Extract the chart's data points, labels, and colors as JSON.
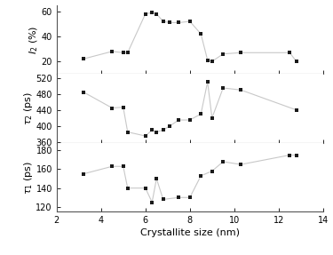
{
  "x_I2": [
    3.2,
    4.5,
    5.0,
    5.2,
    6.0,
    6.3,
    6.5,
    6.8,
    7.1,
    7.5,
    8.0,
    8.5,
    8.8,
    9.0,
    9.5,
    10.3,
    12.5,
    12.8
  ],
  "I2": [
    22,
    28,
    27,
    27,
    58,
    59,
    58,
    52,
    51,
    51,
    52,
    42,
    21,
    20,
    26,
    27,
    27,
    20
  ],
  "x_tau2": [
    3.2,
    4.5,
    5.0,
    5.2,
    6.0,
    6.3,
    6.5,
    6.8,
    7.1,
    7.5,
    8.0,
    8.5,
    8.8,
    9.0,
    9.5,
    10.3,
    12.8
  ],
  "tau2": [
    485,
    445,
    447,
    385,
    375,
    390,
    385,
    390,
    400,
    415,
    415,
    430,
    510,
    420,
    495,
    490,
    440
  ],
  "x_tau1": [
    3.2,
    4.5,
    5.0,
    5.2,
    6.0,
    6.3,
    6.5,
    6.8,
    7.5,
    8.0,
    8.5,
    9.0,
    9.5,
    10.3,
    12.5,
    12.8
  ],
  "tau1": [
    155,
    163,
    163,
    140,
    140,
    125,
    150,
    128,
    130,
    130,
    153,
    158,
    168,
    165,
    175,
    175
  ],
  "xlim": [
    2,
    14
  ],
  "I2_ylim": [
    10,
    65
  ],
  "tau2_ylim": [
    358,
    530
  ],
  "tau1_ylim": [
    115,
    188
  ],
  "I2_yticks": [
    20,
    40,
    60
  ],
  "tau2_yticks": [
    360,
    400,
    440,
    480,
    520
  ],
  "tau1_yticks": [
    120,
    140,
    160,
    180
  ],
  "xticks": [
    2,
    4,
    6,
    8,
    10,
    12,
    14
  ],
  "xlabel": "Crystallite size (nm)",
  "ylabel_I2": "$I_2$ (%)",
  "ylabel_tau2": "$\\tau_2$ (ps)",
  "ylabel_tau1": "$\\tau_1$ (ps)",
  "marker": "s",
  "markersize": 3.5,
  "linecolor": "#c8c8c8",
  "markercolor": "#1a1a1a",
  "linewidth": 0.8,
  "xlabel_fontsize": 8,
  "ylabel_fontsize": 8,
  "tick_fontsize": 7,
  "spine_color": "#555555",
  "spine_lw": 0.8
}
